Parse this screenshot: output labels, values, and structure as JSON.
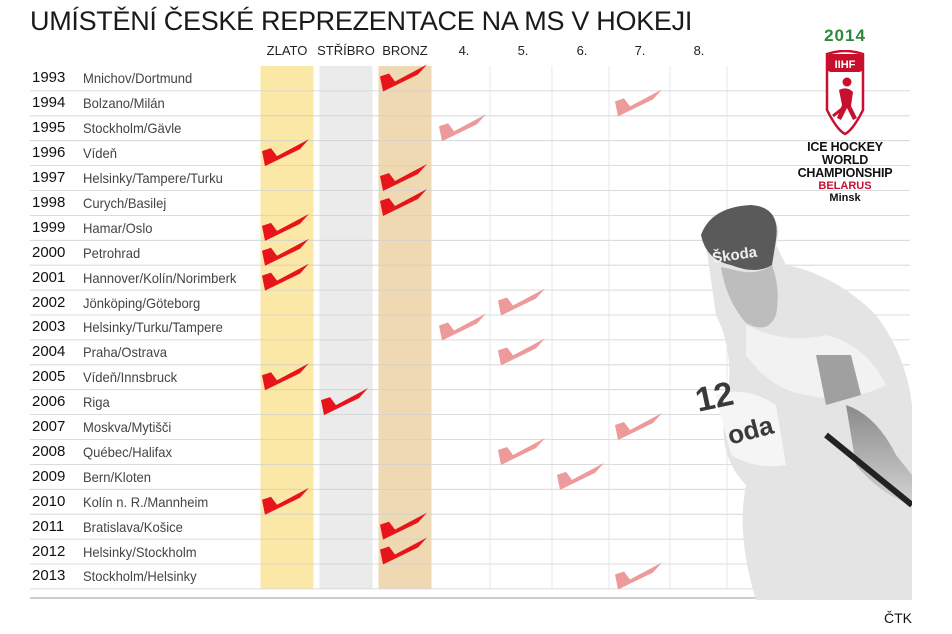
{
  "title": "UMÍSTĚNÍ ČESKÉ REPREZENTACE NA MS V HOKEJI",
  "source": "ČTK",
  "logo": {
    "year": "2014",
    "badge": "IIHF",
    "line1": "ICE HOCKEY",
    "line2": "WORLD",
    "line3": "CHAMPIONSHIP",
    "country": "BELARUS",
    "city": "Minsk"
  },
  "player": {
    "brand": "Škoda",
    "jersey_number": "12",
    "sleeve_text": "oda"
  },
  "colors": {
    "gold": "#fbe8a6",
    "silver": "#ebebeb",
    "bronze": "#efd9b3",
    "medal_check": "#e8141c",
    "other_check": "#ec9a9a",
    "gridline": "#d0d0d0"
  },
  "chart_data": {
    "type": "table",
    "columns": [
      "ZLATO",
      "STŘÍBRO",
      "BRONZ",
      "4.",
      "5.",
      "6.",
      "7.",
      "8."
    ],
    "rows": [
      {
        "year": "1993",
        "venue": "Mnichov/Dortmund",
        "place": 3
      },
      {
        "year": "1994",
        "venue": "Bolzano/Milán",
        "place": 7
      },
      {
        "year": "1995",
        "venue": "Stockholm/Gävle",
        "place": 4
      },
      {
        "year": "1996",
        "venue": "Vídeň",
        "place": 1
      },
      {
        "year": "1997",
        "venue": "Helsinky/Tampere/Turku",
        "place": 3
      },
      {
        "year": "1998",
        "venue": "Curych/Basilej",
        "place": 3
      },
      {
        "year": "1999",
        "venue": "Hamar/Oslo",
        "place": 1
      },
      {
        "year": "2000",
        "venue": "Petrohrad",
        "place": 1
      },
      {
        "year": "2001",
        "venue": "Hannover/Kolín/Norimberk",
        "place": 1
      },
      {
        "year": "2002",
        "venue": "Jönköping/Göteborg",
        "place": 5
      },
      {
        "year": "2003",
        "venue": "Helsinky/Turku/Tampere",
        "place": 4
      },
      {
        "year": "2004",
        "venue": "Praha/Ostrava",
        "place": 5
      },
      {
        "year": "2005",
        "venue": "Vídeň/Innsbruck",
        "place": 1
      },
      {
        "year": "2006",
        "venue": "Riga",
        "place": 2
      },
      {
        "year": "2007",
        "venue": "Moskva/Mytišči",
        "place": 7
      },
      {
        "year": "2008",
        "venue": "Québec/Halifax",
        "place": 5
      },
      {
        "year": "2009",
        "venue": "Bern/Kloten",
        "place": 6
      },
      {
        "year": "2010",
        "venue": "Kolín n. R./Mannheim",
        "place": 1
      },
      {
        "year": "2011",
        "venue": "Bratislava/Košice",
        "place": 3
      },
      {
        "year": "2012",
        "venue": "Helsinky/Stockholm",
        "place": 3
      },
      {
        "year": "2013",
        "venue": "Stockholm/Helsinky",
        "place": 7
      }
    ]
  }
}
